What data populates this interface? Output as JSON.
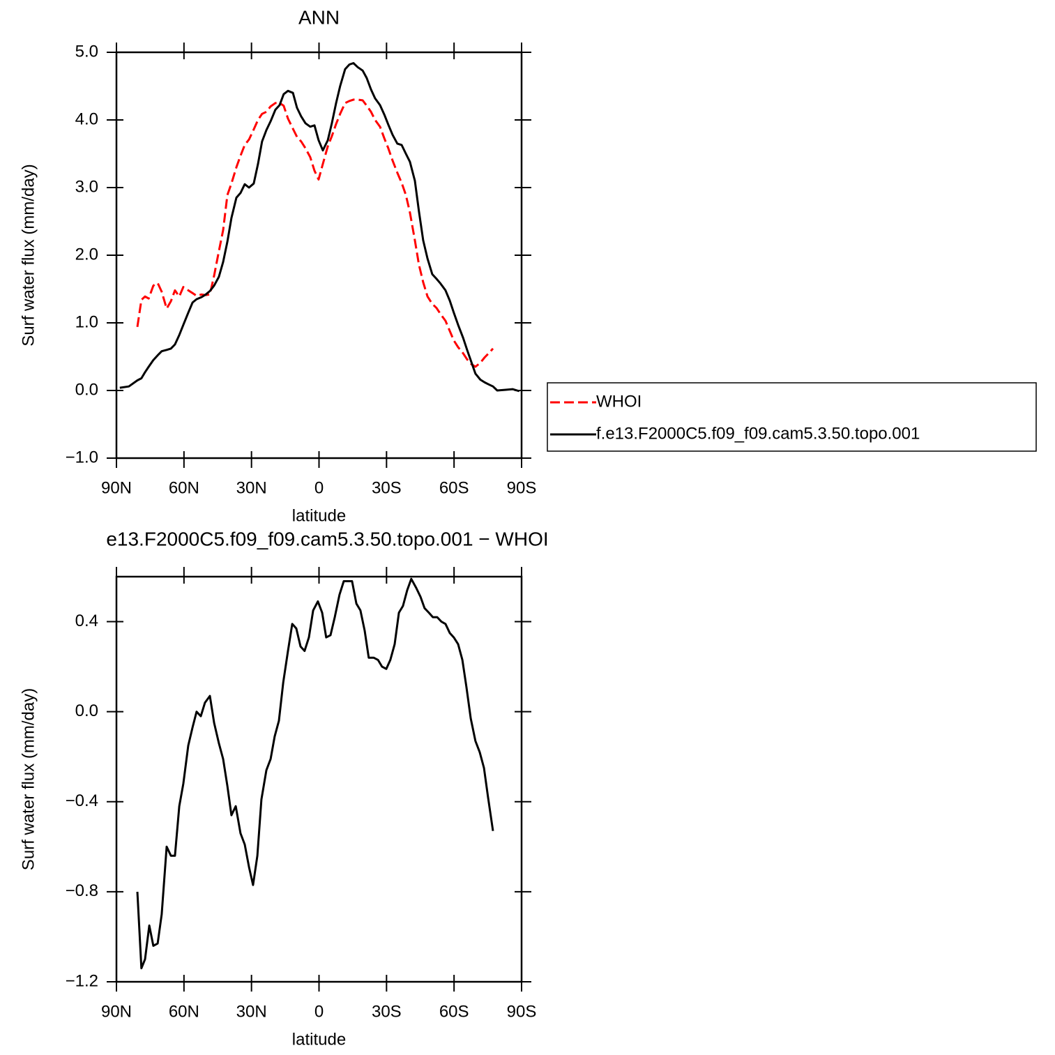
{
  "chart_data": [
    {
      "type": "line",
      "title": "ANN",
      "xlabel": "latitude",
      "ylabel": "Surf water flux (mm/day)",
      "x": [
        88.5,
        84.5,
        80.7,
        78.9,
        77.3,
        75.7,
        73.6,
        71.7,
        69.9,
        67.7,
        65.8,
        64.0,
        62.1,
        60.3,
        58.1,
        56.2,
        54.4,
        52.2,
        50.3,
        48.5,
        46.6,
        44.5,
        42.6,
        40.7,
        38.9,
        36.7,
        34.9,
        33.0,
        31.1,
        29.0,
        27.1,
        25.3,
        23.4,
        21.5,
        19.4,
        17.5,
        15.7,
        13.8,
        11.6,
        9.8,
        7.9,
        6.0,
        3.9,
        2.0,
        0.2,
        -1.7,
        -3.9,
        -5.7,
        -7.6,
        -9.4,
        -11.6,
        -13.5,
        -15.3,
        -17.2,
        -19.4,
        -21.2,
        -23.1,
        -24.9,
        -27.1,
        -29.0,
        -30.8,
        -32.7,
        -34.8,
        -36.7,
        -38.6,
        -40.4,
        -42.6,
        -44.4,
        -46.3,
        -48.2,
        -50.3,
        -52.2,
        -54.0,
        -56.2,
        -58.1,
        -59.9,
        -61.8,
        -64.0,
        -65.8,
        -67.7,
        -69.5,
        -71.7,
        -73.6,
        -75.4,
        -77.3,
        -79.2,
        -83.0,
        -86.0,
        -89.0
      ],
      "series": [
        {
          "name": "WHOI",
          "color": "#ff0000",
          "line_style": "dashed",
          "values": [
            null,
            null,
            0.94,
            1.34,
            1.39,
            1.36,
            1.55,
            1.59,
            1.46,
            1.21,
            1.32,
            1.48,
            1.39,
            1.53,
            1.48,
            1.44,
            1.4,
            1.42,
            1.41,
            1.42,
            1.7,
            2.06,
            2.37,
            2.89,
            3.06,
            3.3,
            3.47,
            3.63,
            3.71,
            3.86,
            4.0,
            4.09,
            4.12,
            4.2,
            4.25,
            4.25,
            4.21,
            4.02,
            3.87,
            3.75,
            3.68,
            3.58,
            3.45,
            3.25,
            3.12,
            3.35,
            3.61,
            3.76,
            3.94,
            4.09,
            4.25,
            4.28,
            4.3,
            4.3,
            4.29,
            4.21,
            4.12,
            4.0,
            3.9,
            3.73,
            3.58,
            3.4,
            3.22,
            3.07,
            2.89,
            2.63,
            2.22,
            1.86,
            1.6,
            1.39,
            1.28,
            1.22,
            1.13,
            1.03,
            0.88,
            0.74,
            0.64,
            0.55,
            0.46,
            0.39,
            0.35,
            0.41,
            0.49,
            0.55,
            0.62,
            null,
            null,
            null,
            null
          ]
        },
        {
          "name": "f.e13.F2000C5.f09_f09.cam5.3.50.topo.001",
          "color": "#000000",
          "line_style": "solid",
          "values": [
            0.04,
            0.06,
            0.15,
            0.18,
            0.27,
            0.35,
            0.45,
            0.52,
            0.58,
            0.6,
            0.62,
            0.68,
            0.82,
            0.97,
            1.15,
            1.3,
            1.35,
            1.38,
            1.42,
            1.47,
            1.55,
            1.68,
            1.9,
            2.2,
            2.55,
            2.85,
            2.92,
            3.05,
            3.0,
            3.06,
            3.35,
            3.68,
            3.85,
            3.98,
            4.15,
            4.22,
            4.38,
            4.43,
            4.4,
            4.18,
            4.05,
            3.95,
            3.9,
            3.92,
            3.7,
            3.55,
            3.7,
            3.95,
            4.25,
            4.5,
            4.75,
            4.82,
            4.84,
            4.78,
            4.73,
            4.62,
            4.45,
            4.32,
            4.22,
            4.08,
            3.93,
            3.78,
            3.65,
            3.63,
            3.5,
            3.38,
            3.1,
            2.65,
            2.22,
            1.95,
            1.72,
            1.65,
            1.58,
            1.48,
            1.33,
            1.15,
            0.97,
            0.78,
            0.6,
            0.42,
            0.25,
            0.16,
            0.12,
            0.09,
            0.06,
            0.0,
            0.01,
            0.02,
            -0.01
          ]
        }
      ],
      "xlim": [
        90,
        -90
      ],
      "xticks": [
        {
          "value": 90,
          "label": "90N"
        },
        {
          "value": 60,
          "label": "60N"
        },
        {
          "value": 30,
          "label": "30N"
        },
        0,
        {
          "value": -30,
          "label": "30S"
        },
        {
          "value": -60,
          "label": "60S"
        },
        {
          "value": -90,
          "label": "90S"
        }
      ],
      "ylim": [
        -1,
        5
      ],
      "yticks": [
        {
          "value": -1,
          "label": "−1.0"
        },
        {
          "value": 0,
          "label": "0.0"
        },
        {
          "value": 1,
          "label": "1.0"
        },
        {
          "value": 2,
          "label": "2.0"
        },
        {
          "value": 3,
          "label": "3.0"
        },
        {
          "value": 4,
          "label": "4.0"
        },
        {
          "value": 5,
          "label": "5.0"
        }
      ],
      "legend": "right"
    },
    {
      "type": "line",
      "title": "e13.F2000C5.f09_f09.cam5.3.50.topo.001 − WHOI",
      "xlabel": "latitude",
      "ylabel": "Surf water flux (mm/day)",
      "x": [
        80.7,
        78.9,
        77.3,
        75.4,
        73.6,
        71.7,
        69.9,
        67.7,
        65.8,
        64.0,
        62.1,
        60.3,
        58.1,
        56.2,
        54.4,
        52.5,
        50.7,
        48.5,
        46.6,
        44.5,
        42.6,
        40.7,
        38.9,
        37.0,
        34.9,
        33.0,
        31.1,
        29.3,
        27.4,
        25.6,
        23.4,
        21.5,
        19.7,
        17.8,
        15.9,
        13.8,
        11.9,
        10.1,
        8.2,
        6.4,
        4.5,
        2.6,
        0.5,
        -1.4,
        -3.2,
        -5.1,
        -7.0,
        -9.1,
        -11.0,
        -12.8,
        -14.7,
        -16.6,
        -18.4,
        -20.3,
        -22.1,
        -24.3,
        -26.2,
        -28.0,
        -29.9,
        -31.7,
        -33.6,
        -35.5,
        -37.3,
        -39.2,
        -41.0,
        -43.2,
        -45.1,
        -46.9,
        -48.8,
        -50.6,
        -52.5,
        -54.4,
        -56.2,
        -58.1,
        -59.9,
        -61.8,
        -63.7,
        -65.5,
        -67.4,
        -69.5,
        -71.4,
        -73.3,
        -75.1,
        -77.3
      ],
      "color": "#000000",
      "values": [
        -0.8,
        -1.14,
        -1.1,
        -0.95,
        -1.04,
        -1.03,
        -0.9,
        -0.6,
        -0.64,
        -0.64,
        -0.42,
        -0.32,
        -0.15,
        -0.07,
        0.0,
        -0.02,
        0.04,
        0.07,
        -0.05,
        -0.14,
        -0.21,
        -0.33,
        -0.46,
        -0.42,
        -0.54,
        -0.59,
        -0.69,
        -0.77,
        -0.64,
        -0.39,
        -0.26,
        -0.21,
        -0.11,
        -0.04,
        0.13,
        0.27,
        0.39,
        0.37,
        0.29,
        0.27,
        0.33,
        0.45,
        0.49,
        0.44,
        0.33,
        0.34,
        0.42,
        0.52,
        0.58,
        0.58,
        0.58,
        0.48,
        0.45,
        0.36,
        0.24,
        0.24,
        0.23,
        0.2,
        0.19,
        0.23,
        0.3,
        0.44,
        0.47,
        0.54,
        0.59,
        0.55,
        0.51,
        0.46,
        0.44,
        0.42,
        0.42,
        0.4,
        0.39,
        0.35,
        0.33,
        0.3,
        0.23,
        0.11,
        -0.03,
        -0.13,
        -0.18,
        -0.25,
        -0.38,
        -0.53
      ],
      "xlim": [
        90,
        -90
      ],
      "xticks": [
        {
          "value": 90,
          "label": "90N"
        },
        {
          "value": 60,
          "label": "60N"
        },
        {
          "value": 30,
          "label": "30N"
        },
        0,
        {
          "value": -30,
          "label": "30S"
        },
        {
          "value": -60,
          "label": "60S"
        },
        {
          "value": -90,
          "label": "90S"
        }
      ],
      "ylim": [
        -1.2,
        0.6
      ],
      "yticks": [
        {
          "value": -1.2,
          "label": "−1.2"
        },
        {
          "value": -0.8,
          "label": "−0.8"
        },
        {
          "value": -0.4,
          "label": "−0.4"
        },
        {
          "value": 0,
          "label": "0.0"
        },
        0.4
      ]
    }
  ]
}
